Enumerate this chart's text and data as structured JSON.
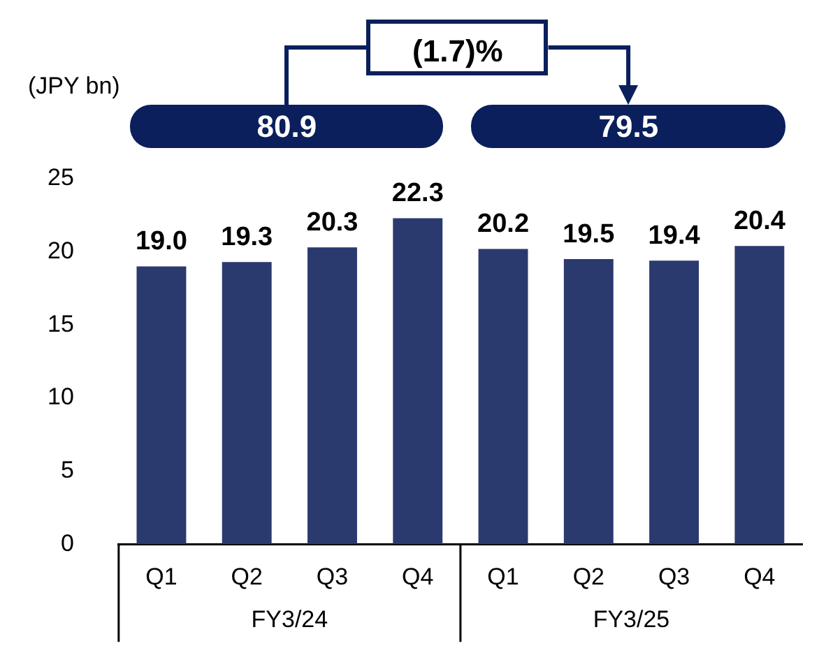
{
  "chart_data": {
    "type": "bar",
    "ylabel": "(JPY bn)",
    "categories": [
      "Q1",
      "Q2",
      "Q3",
      "Q4",
      "Q1",
      "Q2",
      "Q3",
      "Q4"
    ],
    "values": [
      19.0,
      19.3,
      20.3,
      22.3,
      20.2,
      19.5,
      19.4,
      20.4
    ],
    "color": "#2b3a6e",
    "ylim": [
      0,
      25
    ],
    "yticks": [
      0,
      5,
      10,
      15,
      20,
      25
    ],
    "value_labels": [
      "19.0",
      "19.3",
      "20.3",
      "22.3",
      "20.2",
      "19.5",
      "19.4",
      "20.4"
    ],
    "grid": false,
    "legend": false,
    "annotations": [
      "(1.7)%",
      "80.9",
      "79.5",
      "FY3/24",
      "FY3/25"
    ]
  }
}
